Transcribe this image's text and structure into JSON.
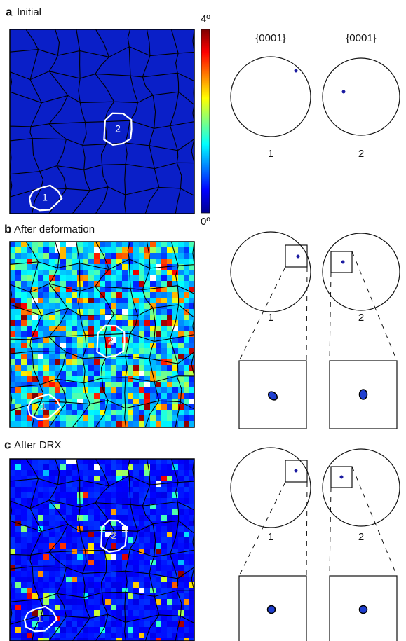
{
  "colorbar": {
    "max": "4º",
    "min": "0º"
  },
  "pole_figure_headers": [
    "{0001}",
    "{0001}"
  ],
  "panels": [
    {
      "letter": "a",
      "title": "Initial",
      "grain_labels": [
        "1",
        "2"
      ],
      "pole_figure_labels": [
        "1",
        "2"
      ]
    },
    {
      "letter": "b",
      "title": "After deformation",
      "grain_labels": [
        "1",
        "2"
      ],
      "pole_figure_labels": [
        "1",
        "2"
      ]
    },
    {
      "letter": "c",
      "title": "After DRX",
      "grain_labels": [
        "1",
        "2"
      ],
      "pole_figure_labels": [
        "1",
        "2"
      ]
    }
  ]
}
